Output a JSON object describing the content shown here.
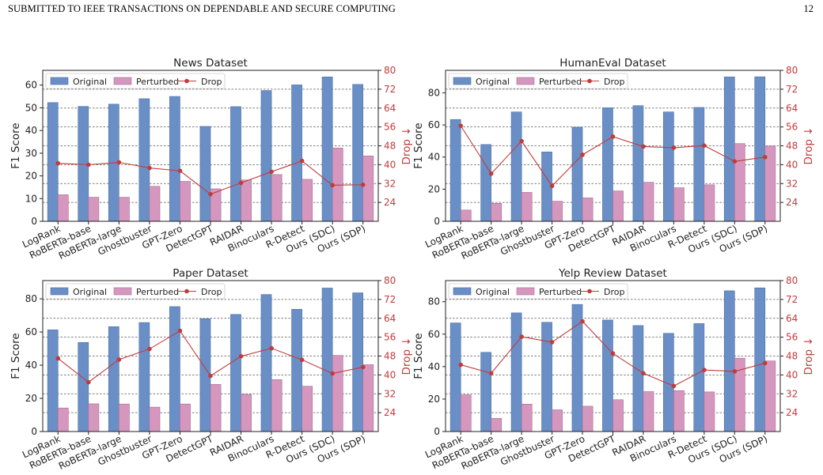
{
  "page": {
    "header_left": "SUBMITTED TO IEEE TRANSACTIONS ON DEPENDABLE AND SECURE COMPUTING",
    "page_number": "12"
  },
  "colors": {
    "original": "#6a8fc7",
    "perturbed": "#d597be",
    "drop": "#c23b3b",
    "grid": "#555555"
  },
  "legend_labels": [
    "Original",
    "Perturbed",
    "Drop"
  ],
  "chart_data": [
    {
      "type": "bar",
      "title": "News Dataset",
      "ylabel": "F1 Score",
      "ylabel_right": "Drop ↓",
      "categories": [
        "LogRank",
        "RoBERTa-base",
        "RoBERTa-large",
        "Ghostbuster",
        "GPT-Zero",
        "DetectGPT",
        "RAIDAR",
        "Binoculars",
        "R-Detect",
        "Ours (SDC)",
        "Ours (SDP)"
      ],
      "series": [
        {
          "name": "Original",
          "values": [
            52.3,
            50.6,
            51.6,
            54.0,
            55.0,
            41.8,
            50.5,
            57.6,
            60.1,
            63.6,
            60.3
          ]
        },
        {
          "name": "Perturbed",
          "values": [
            11.7,
            10.6,
            10.6,
            15.4,
            17.6,
            14.3,
            18.2,
            20.6,
            18.5,
            32.3,
            28.8
          ]
        },
        {
          "name": "Drop",
          "values": [
            40.6,
            40.0,
            41.0,
            38.6,
            37.4,
            27.5,
            32.3,
            37.0,
            41.6,
            31.3,
            31.5
          ]
        }
      ],
      "ylim": [
        0,
        66.5
      ],
      "yticks": [
        0,
        10,
        20,
        30,
        40,
        50,
        60
      ],
      "ylim_right": [
        16,
        80
      ],
      "yticks_right": [
        24,
        32,
        40,
        48,
        56,
        64,
        72,
        80
      ],
      "legend": "top-left"
    },
    {
      "type": "bar",
      "title": "HumanEval Dataset",
      "ylabel": "F1 Score",
      "ylabel_right": "Drop ↓",
      "categories": [
        "LogRank",
        "RoBERTa-base",
        "RoBERTa-large",
        "Ghostbuster",
        "GPT-Zero",
        "DetectGPT",
        "RAIDAR",
        "Binoculars",
        "R-Detect",
        "Ours (SDC)",
        "Ours (SDP)"
      ],
      "series": [
        {
          "name": "Original",
          "values": [
            63.4,
            47.8,
            68.1,
            43.2,
            58.6,
            70.7,
            72.0,
            68.1,
            70.9,
            89.9,
            90.0
          ]
        },
        {
          "name": "Perturbed",
          "values": [
            7.0,
            11.2,
            18.0,
            12.5,
            14.6,
            18.9,
            24.3,
            20.9,
            22.7,
            48.4,
            46.9
          ]
        },
        {
          "name": "Drop",
          "values": [
            56.5,
            36.2,
            50.0,
            31.0,
            44.2,
            51.9,
            47.7,
            47.2,
            48.1,
            41.4,
            43.2
          ]
        }
      ],
      "ylim": [
        0,
        94
      ],
      "yticks": [
        0,
        20,
        40,
        60,
        80
      ],
      "ylim_right": [
        16,
        80
      ],
      "yticks_right": [
        24,
        32,
        40,
        48,
        56,
        64,
        72,
        80
      ],
      "legend": "top-left"
    },
    {
      "type": "bar",
      "title": "Paper Dataset",
      "ylabel": "F1 Score",
      "ylabel_right": "Drop ↓",
      "categories": [
        "LogRank",
        "RoBERTa-base",
        "RoBERTa-large",
        "Ghostbuster",
        "GPT-Zero",
        "DetectGPT",
        "RAIDAR",
        "Binoculars",
        "R-Detect",
        "Ours (SDC)",
        "Ours (SDP)"
      ],
      "series": [
        {
          "name": "Original",
          "values": [
            61.3,
            53.7,
            63.2,
            65.7,
            75.3,
            68.0,
            70.6,
            82.6,
            73.7,
            86.5,
            83.6
          ]
        },
        {
          "name": "Perturbed",
          "values": [
            14.2,
            16.7,
            16.6,
            14.7,
            16.6,
            28.4,
            22.4,
            31.3,
            27.3,
            45.9,
            40.3
          ]
        },
        {
          "name": "Drop",
          "values": [
            47.0,
            36.9,
            46.5,
            51.0,
            58.7,
            39.6,
            47.9,
            51.3,
            46.4,
            40.6,
            43.3
          ]
        }
      ],
      "ylim": [
        0,
        91
      ],
      "yticks": [
        0,
        20,
        40,
        60,
        80
      ],
      "ylim_right": [
        16,
        80
      ],
      "yticks_right": [
        24,
        32,
        40,
        48,
        56,
        64,
        72,
        80
      ],
      "legend": "top-left"
    },
    {
      "type": "bar",
      "title": "Yelp Review Dataset",
      "ylabel": "F1 Score",
      "ylabel_right": "Drop ↓",
      "categories": [
        "LogRank",
        "RoBERTa-base",
        "RoBERTa-large",
        "Ghostbuster",
        "GPT-Zero",
        "DetectGPT",
        "RAIDAR",
        "Binoculars",
        "R-Detect",
        "Ours (SDC)",
        "Ours (SDP)"
      ],
      "series": [
        {
          "name": "Original",
          "values": [
            66.9,
            48.8,
            73.1,
            67.3,
            78.3,
            68.7,
            65.3,
            60.5,
            66.5,
            86.7,
            88.5
          ]
        },
        {
          "name": "Perturbed",
          "values": [
            22.6,
            8.1,
            16.9,
            13.4,
            15.6,
            19.6,
            24.6,
            25.2,
            24.4,
            45.2,
            43.5
          ]
        },
        {
          "name": "Drop",
          "values": [
            44.3,
            40.7,
            56.2,
            53.9,
            62.7,
            49.1,
            40.7,
            35.3,
            42.1,
            41.5,
            45.0
          ]
        }
      ],
      "ylim": [
        0,
        93
      ],
      "yticks": [
        0,
        20,
        40,
        60,
        80
      ],
      "ylim_right": [
        16,
        80
      ],
      "yticks_right": [
        24,
        32,
        40,
        48,
        56,
        64,
        72,
        80
      ],
      "legend": "top-left"
    }
  ]
}
